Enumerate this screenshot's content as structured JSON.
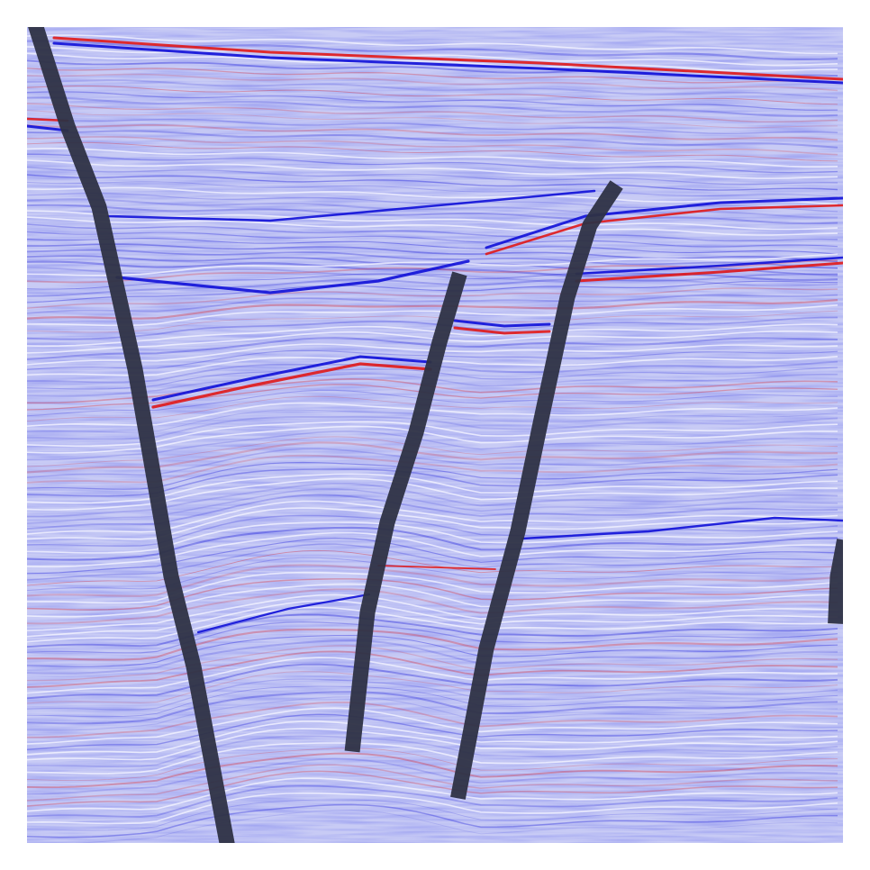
{
  "image": {
    "kind": "seismic-section-with-interpreted-faults",
    "colormap": {
      "negative": "#1010d8",
      "zero": "#f4f4ff",
      "positive": "#e01818"
    },
    "background_color": "#c8cbf5",
    "fault_color": "#2e3144",
    "fault_count": 5,
    "strong_reflector_count": 7
  }
}
